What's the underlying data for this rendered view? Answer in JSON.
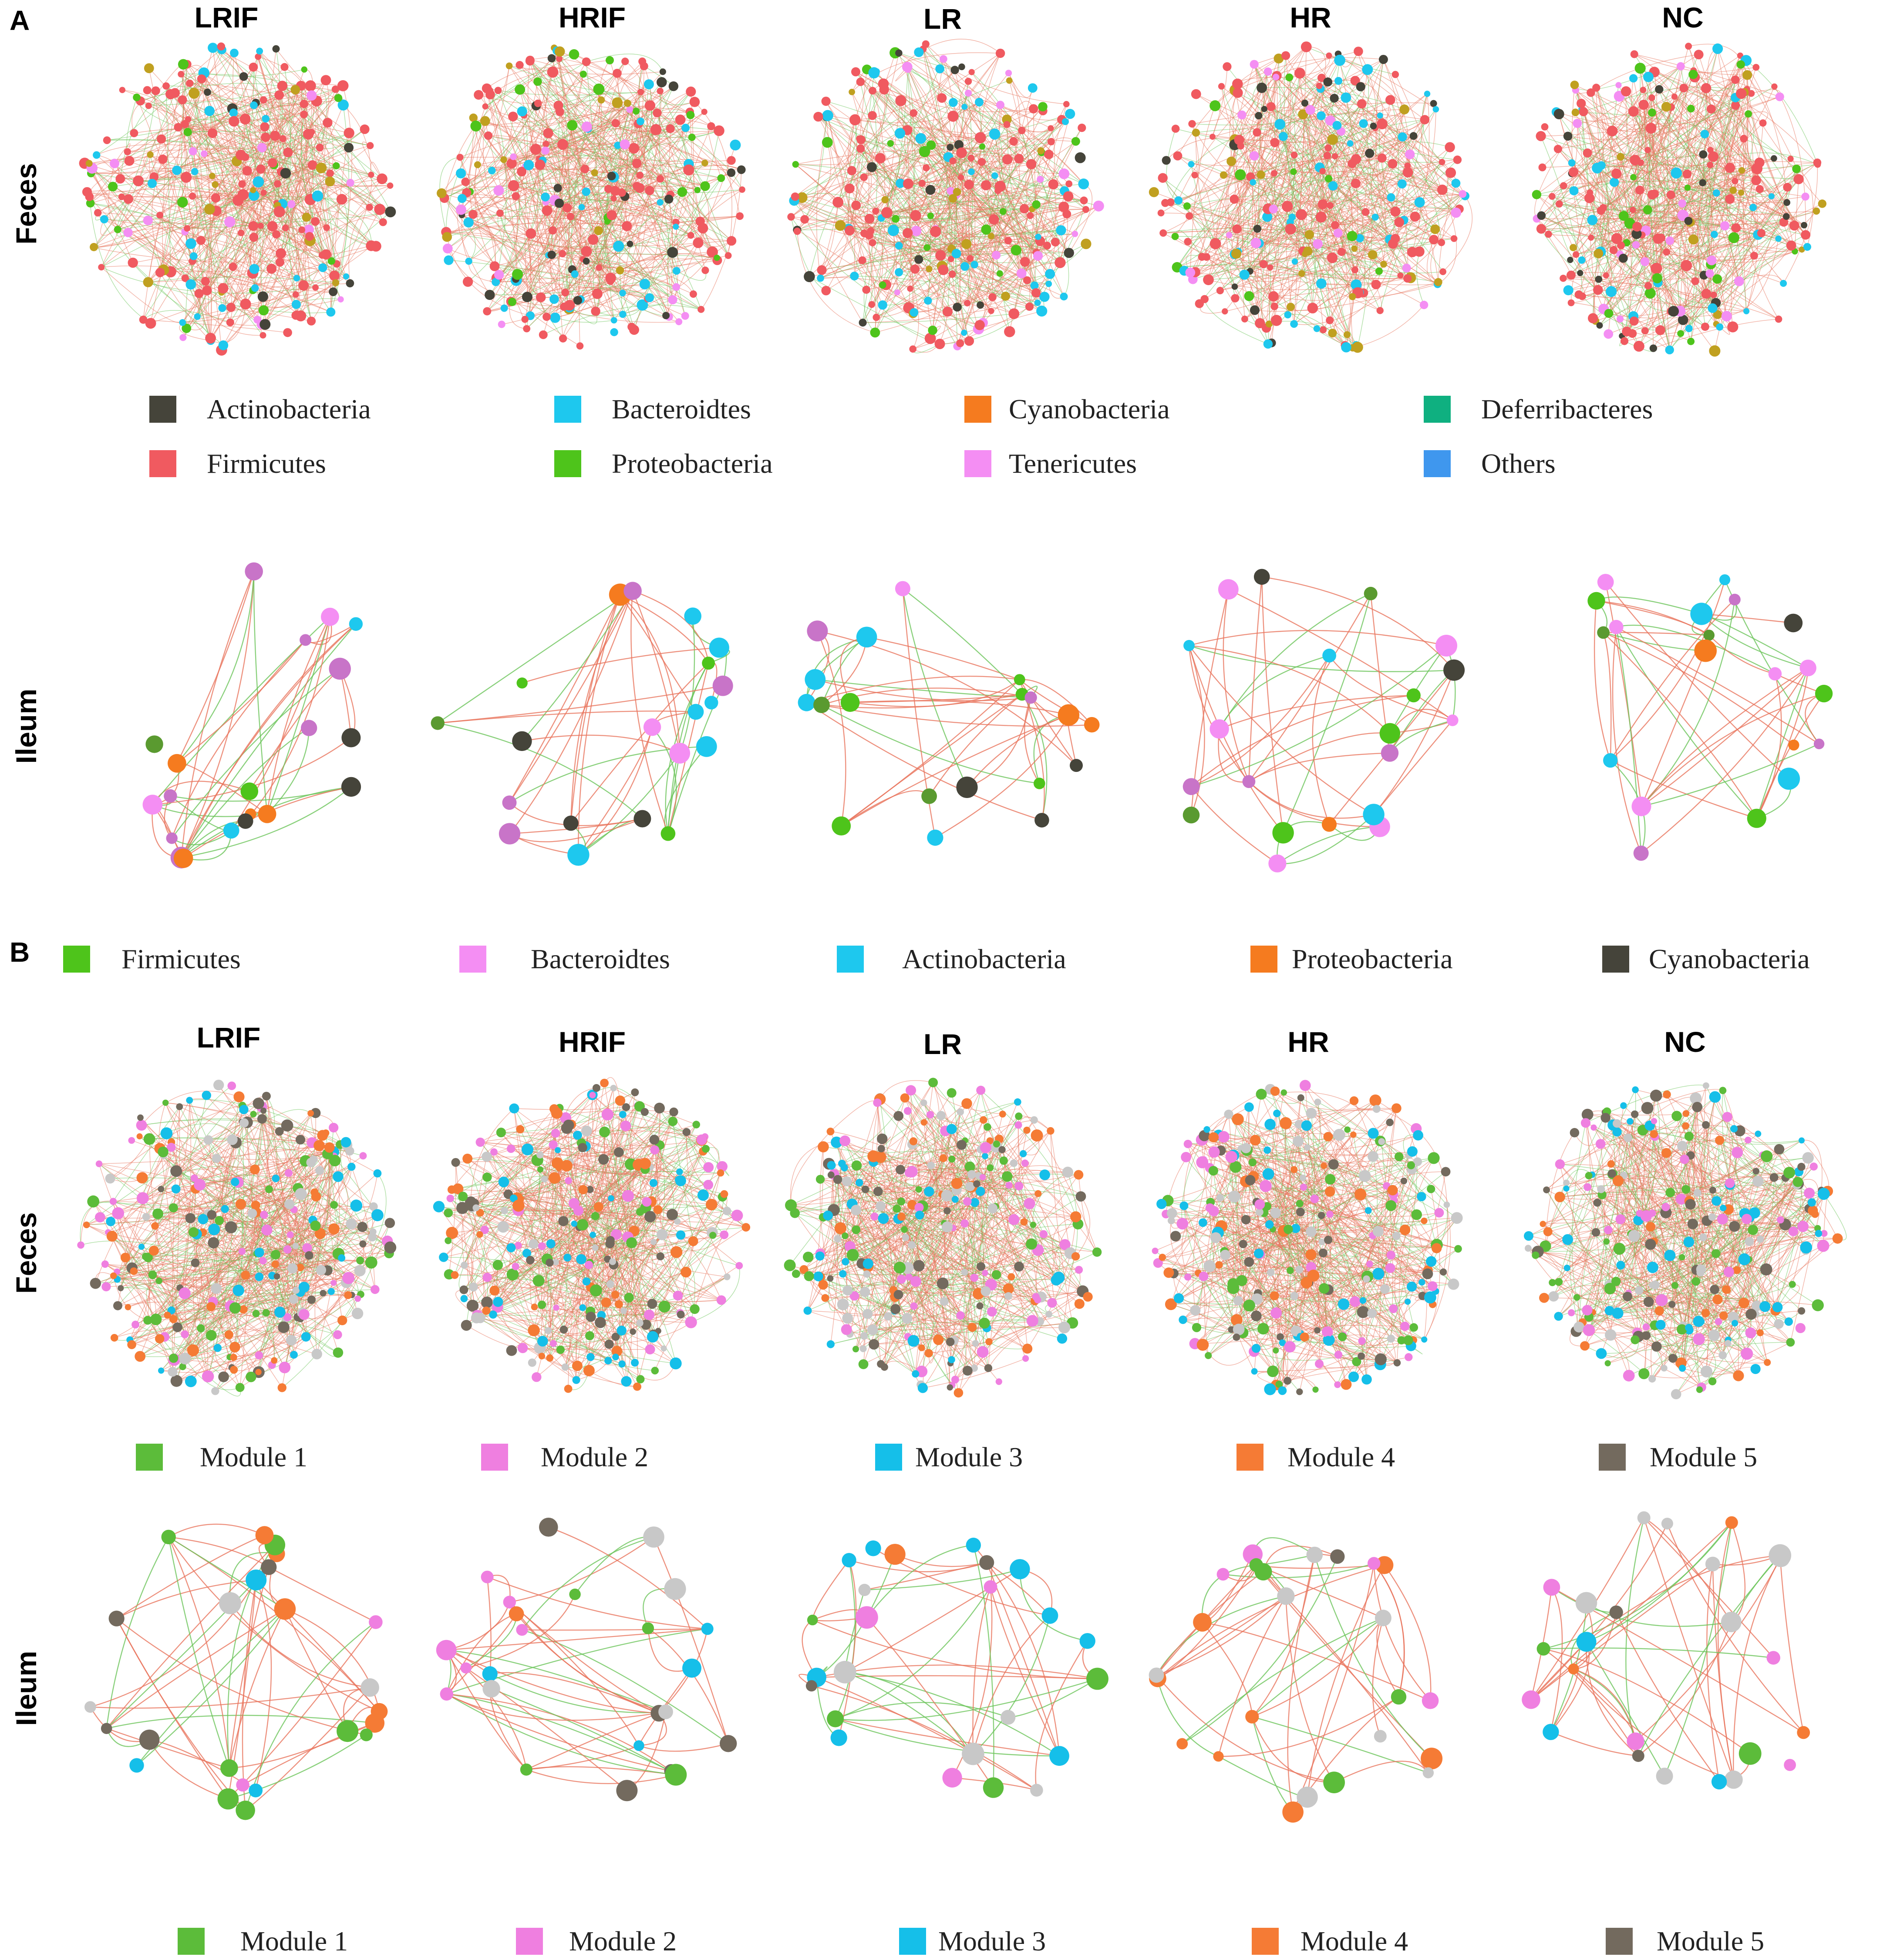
{
  "panels": [
    {
      "letter": "A",
      "columns": [
        "LRIF",
        "HRIF",
        "LR",
        "HR",
        "NC"
      ],
      "rows": [
        "Feces",
        "Ileum"
      ],
      "feces_legend": [
        {
          "label": "Actinobacteria",
          "color": "#45443a"
        },
        {
          "label": "Bacteroidtes",
          "color": "#1ec8ee"
        },
        {
          "label": "Cyanobacteria",
          "color": "#f57b1f"
        },
        {
          "label": "Deferribacteres",
          "color": "#0fb080"
        },
        {
          "label": "Firmicutes",
          "color": "#f05a60"
        },
        {
          "label": "Proteobacteria",
          "color": "#4ec41b"
        },
        {
          "label": "Tenericutes",
          "color": "#f48ef3"
        },
        {
          "label": "Others",
          "color": "#3f97ee"
        }
      ],
      "ileum_legend": [
        {
          "label": "Firmicutes",
          "color": "#4ec41b"
        },
        {
          "label": "Bacteroidtes",
          "color": "#f48ef3"
        },
        {
          "label": "Actinobacteria",
          "color": "#1ec8ee"
        },
        {
          "label": "Proteobacteria",
          "color": "#f57b1f"
        },
        {
          "label": "Cyanobacteria",
          "color": "#45443a"
        }
      ]
    },
    {
      "letter": "B",
      "columns": [
        "LRIF",
        "HRIF",
        "LR",
        "HR",
        "NC"
      ],
      "rows": [
        "Feces",
        "Ileum"
      ],
      "feces_legend": [
        {
          "label": "Module 1",
          "color": "#5cbc3a"
        },
        {
          "label": "Module 2",
          "color": "#ef7fe0"
        },
        {
          "label": "Module 3",
          "color": "#15bfe9"
        },
        {
          "label": "Module 4",
          "color": "#f57b35"
        },
        {
          "label": "Module 5",
          "color": "#736a5e"
        }
      ],
      "ileum_legend": [
        {
          "label": "Module 1",
          "color": "#5cbc3a"
        },
        {
          "label": "Module 2",
          "color": "#ef7fe0"
        },
        {
          "label": "Module 3",
          "color": "#15bfe9"
        },
        {
          "label": "Module 4",
          "color": "#f57b35"
        },
        {
          "label": "Module 5",
          "color": "#736a5e"
        }
      ]
    }
  ],
  "edge_colors": {
    "positive": "#e8745c",
    "negative": "#6cc45a"
  },
  "node_palettes": {
    "A_feces": [
      "#f05a60",
      "#f05a60",
      "#f05a60",
      "#f05a60",
      "#f05a60",
      "#f05a60",
      "#1ec8ee",
      "#1ec8ee",
      "#4ec41b",
      "#45443a",
      "#f48ef3",
      "#c0a020"
    ],
    "A_ileum": [
      "#c874c8",
      "#4ec41b",
      "#5a9a30",
      "#1ec8ee",
      "#f57b1f",
      "#45443a",
      "#f48ef3"
    ],
    "B_feces": [
      "#5cbc3a",
      "#ef7fe0",
      "#15bfe9",
      "#f57b35",
      "#736a5e",
      "#c8c8c8"
    ],
    "B_ileum": [
      "#5cbc3a",
      "#ef7fe0",
      "#15bfe9",
      "#f57b35",
      "#736a5e",
      "#c8c8c8"
    ]
  }
}
